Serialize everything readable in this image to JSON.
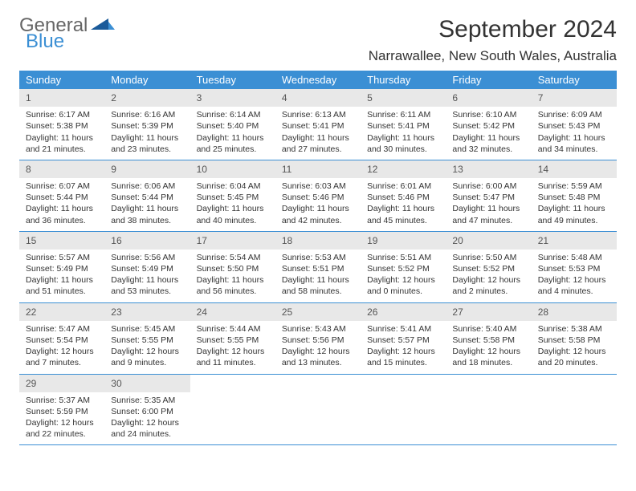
{
  "logo": {
    "text1": "General",
    "text2": "Blue"
  },
  "title": "September 2024",
  "location": "Narrawallee, New South Wales, Australia",
  "colors": {
    "header_bg": "#3b8fd4",
    "header_fg": "#ffffff",
    "daynum_bg": "#e8e8e8",
    "week_border": "#3b8fd4",
    "logo_accent": "#3b8fd4",
    "logo_text": "#666666"
  },
  "weekdays": [
    "Sunday",
    "Monday",
    "Tuesday",
    "Wednesday",
    "Thursday",
    "Friday",
    "Saturday"
  ],
  "days": [
    {
      "n": "1",
      "sr": "6:17 AM",
      "ss": "5:38 PM",
      "d1": "11 hours",
      "d2": "and 21 minutes."
    },
    {
      "n": "2",
      "sr": "6:16 AM",
      "ss": "5:39 PM",
      "d1": "11 hours",
      "d2": "and 23 minutes."
    },
    {
      "n": "3",
      "sr": "6:14 AM",
      "ss": "5:40 PM",
      "d1": "11 hours",
      "d2": "and 25 minutes."
    },
    {
      "n": "4",
      "sr": "6:13 AM",
      "ss": "5:41 PM",
      "d1": "11 hours",
      "d2": "and 27 minutes."
    },
    {
      "n": "5",
      "sr": "6:11 AM",
      "ss": "5:41 PM",
      "d1": "11 hours",
      "d2": "and 30 minutes."
    },
    {
      "n": "6",
      "sr": "6:10 AM",
      "ss": "5:42 PM",
      "d1": "11 hours",
      "d2": "and 32 minutes."
    },
    {
      "n": "7",
      "sr": "6:09 AM",
      "ss": "5:43 PM",
      "d1": "11 hours",
      "d2": "and 34 minutes."
    },
    {
      "n": "8",
      "sr": "6:07 AM",
      "ss": "5:44 PM",
      "d1": "11 hours",
      "d2": "and 36 minutes."
    },
    {
      "n": "9",
      "sr": "6:06 AM",
      "ss": "5:44 PM",
      "d1": "11 hours",
      "d2": "and 38 minutes."
    },
    {
      "n": "10",
      "sr": "6:04 AM",
      "ss": "5:45 PM",
      "d1": "11 hours",
      "d2": "and 40 minutes."
    },
    {
      "n": "11",
      "sr": "6:03 AM",
      "ss": "5:46 PM",
      "d1": "11 hours",
      "d2": "and 42 minutes."
    },
    {
      "n": "12",
      "sr": "6:01 AM",
      "ss": "5:46 PM",
      "d1": "11 hours",
      "d2": "and 45 minutes."
    },
    {
      "n": "13",
      "sr": "6:00 AM",
      "ss": "5:47 PM",
      "d1": "11 hours",
      "d2": "and 47 minutes."
    },
    {
      "n": "14",
      "sr": "5:59 AM",
      "ss": "5:48 PM",
      "d1": "11 hours",
      "d2": "and 49 minutes."
    },
    {
      "n": "15",
      "sr": "5:57 AM",
      "ss": "5:49 PM",
      "d1": "11 hours",
      "d2": "and 51 minutes."
    },
    {
      "n": "16",
      "sr": "5:56 AM",
      "ss": "5:49 PM",
      "d1": "11 hours",
      "d2": "and 53 minutes."
    },
    {
      "n": "17",
      "sr": "5:54 AM",
      "ss": "5:50 PM",
      "d1": "11 hours",
      "d2": "and 56 minutes."
    },
    {
      "n": "18",
      "sr": "5:53 AM",
      "ss": "5:51 PM",
      "d1": "11 hours",
      "d2": "and 58 minutes."
    },
    {
      "n": "19",
      "sr": "5:51 AM",
      "ss": "5:52 PM",
      "d1": "12 hours",
      "d2": "and 0 minutes."
    },
    {
      "n": "20",
      "sr": "5:50 AM",
      "ss": "5:52 PM",
      "d1": "12 hours",
      "d2": "and 2 minutes."
    },
    {
      "n": "21",
      "sr": "5:48 AM",
      "ss": "5:53 PM",
      "d1": "12 hours",
      "d2": "and 4 minutes."
    },
    {
      "n": "22",
      "sr": "5:47 AM",
      "ss": "5:54 PM",
      "d1": "12 hours",
      "d2": "and 7 minutes."
    },
    {
      "n": "23",
      "sr": "5:45 AM",
      "ss": "5:55 PM",
      "d1": "12 hours",
      "d2": "and 9 minutes."
    },
    {
      "n": "24",
      "sr": "5:44 AM",
      "ss": "5:55 PM",
      "d1": "12 hours",
      "d2": "and 11 minutes."
    },
    {
      "n": "25",
      "sr": "5:43 AM",
      "ss": "5:56 PM",
      "d1": "12 hours",
      "d2": "and 13 minutes."
    },
    {
      "n": "26",
      "sr": "5:41 AM",
      "ss": "5:57 PM",
      "d1": "12 hours",
      "d2": "and 15 minutes."
    },
    {
      "n": "27",
      "sr": "5:40 AM",
      "ss": "5:58 PM",
      "d1": "12 hours",
      "d2": "and 18 minutes."
    },
    {
      "n": "28",
      "sr": "5:38 AM",
      "ss": "5:58 PM",
      "d1": "12 hours",
      "d2": "and 20 minutes."
    },
    {
      "n": "29",
      "sr": "5:37 AM",
      "ss": "5:59 PM",
      "d1": "12 hours",
      "d2": "and 22 minutes."
    },
    {
      "n": "30",
      "sr": "5:35 AM",
      "ss": "6:00 PM",
      "d1": "12 hours",
      "d2": "and 24 minutes."
    }
  ],
  "labels": {
    "sunrise": "Sunrise:",
    "sunset": "Sunset:",
    "daylight": "Daylight:"
  }
}
